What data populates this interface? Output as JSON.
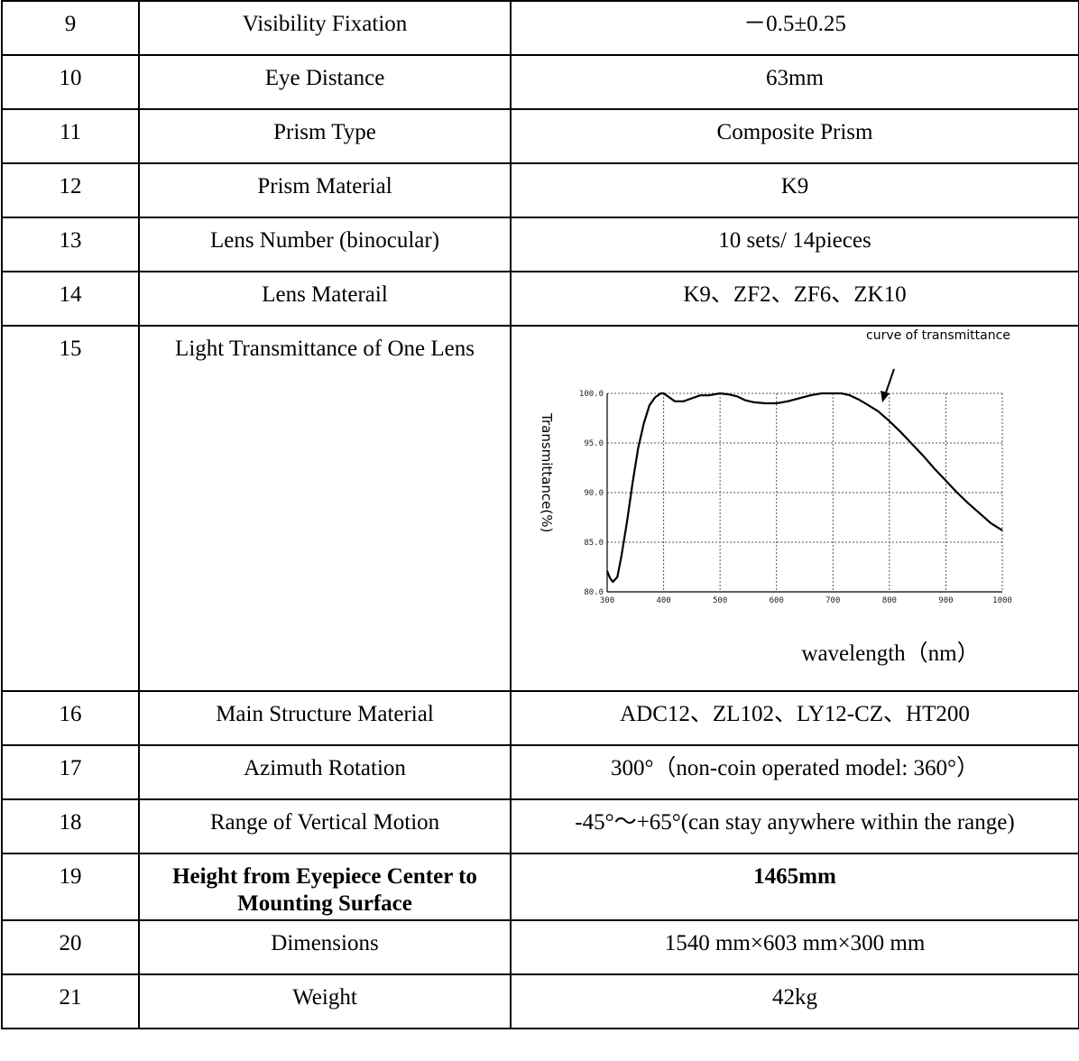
{
  "rows_before": [
    {
      "no": "9",
      "name": "Visibility Fixation",
      "value": "－0.5±0.25"
    },
    {
      "no": "10",
      "name": "Eye Distance",
      "value": "63mm"
    },
    {
      "no": "11",
      "name": "Prism Type",
      "value": "Composite Prism"
    },
    {
      "no": "12",
      "name": "Prism Material",
      "value": "K9"
    },
    {
      "no": "13",
      "name": "Lens Number (binocular)",
      "value": "10 sets/ 14pieces"
    },
    {
      "no": "14",
      "name": "Lens Materail",
      "value": "K9、ZF2、ZF6、ZK10"
    }
  ],
  "chart_row": {
    "no": "15",
    "name": "Light Transmittance of One Lens"
  },
  "rows_after": [
    {
      "no": "16",
      "name": "Main Structure Material",
      "value": "ADC12、ZL102、LY12-CZ、HT200"
    },
    {
      "no": "17",
      "name": "Azimuth Rotation",
      "value": "300°（non-coin operated model: 360°）"
    },
    {
      "no": "18",
      "name": "Range of Vertical Motion",
      "value": "-45°～+65°(can stay anywhere within the range)"
    },
    {
      "no": "19",
      "name": "Height from Eyepiece Center to Mounting Surface",
      "value": "1465mm",
      "bold": true
    },
    {
      "no": "20",
      "name": "Dimensions",
      "value": "1540 mm×603 mm×300 mm"
    },
    {
      "no": "21",
      "name": "Weight",
      "value": "42kg"
    }
  ],
  "chart_data": {
    "type": "line",
    "title": "",
    "annotation": "curve of transmittance",
    "xlabel": "wavelength（nm）",
    "ylabel": "Transmittance(%)",
    "xlim": [
      300,
      1000
    ],
    "ylim": [
      80,
      100
    ],
    "xticks": [
      "300",
      "400",
      "500",
      "600",
      "700",
      "800",
      "900",
      "1000"
    ],
    "yticks": [
      "80.0",
      "85.0",
      "90.0",
      "95.0",
      "100.0"
    ],
    "grid": true,
    "series": [
      {
        "x": [
          300,
          305,
          310,
          318,
          325,
          335,
          345,
          355,
          365,
          375,
          385,
          395,
          400,
          410,
          420,
          435,
          450,
          465,
          480,
          500,
          515,
          530,
          545,
          560,
          580,
          600,
          620,
          640,
          660,
          680,
          700,
          715,
          730,
          745,
          760,
          780,
          800,
          820,
          840,
          860,
          880,
          900,
          920,
          940,
          960,
          980,
          1000
        ],
        "y": [
          82.1,
          81.4,
          81.0,
          81.5,
          83.5,
          87.0,
          91.0,
          94.5,
          97.0,
          98.8,
          99.6,
          100.0,
          100.0,
          99.6,
          99.2,
          99.2,
          99.5,
          99.8,
          99.8,
          100.0,
          99.9,
          99.7,
          99.3,
          99.1,
          99.0,
          99.0,
          99.2,
          99.5,
          99.8,
          100.0,
          100.0,
          100.0,
          99.8,
          99.4,
          98.9,
          98.2,
          97.2,
          96.1,
          94.9,
          93.7,
          92.4,
          91.2,
          90.0,
          88.9,
          87.9,
          86.9,
          86.2
        ]
      }
    ]
  }
}
